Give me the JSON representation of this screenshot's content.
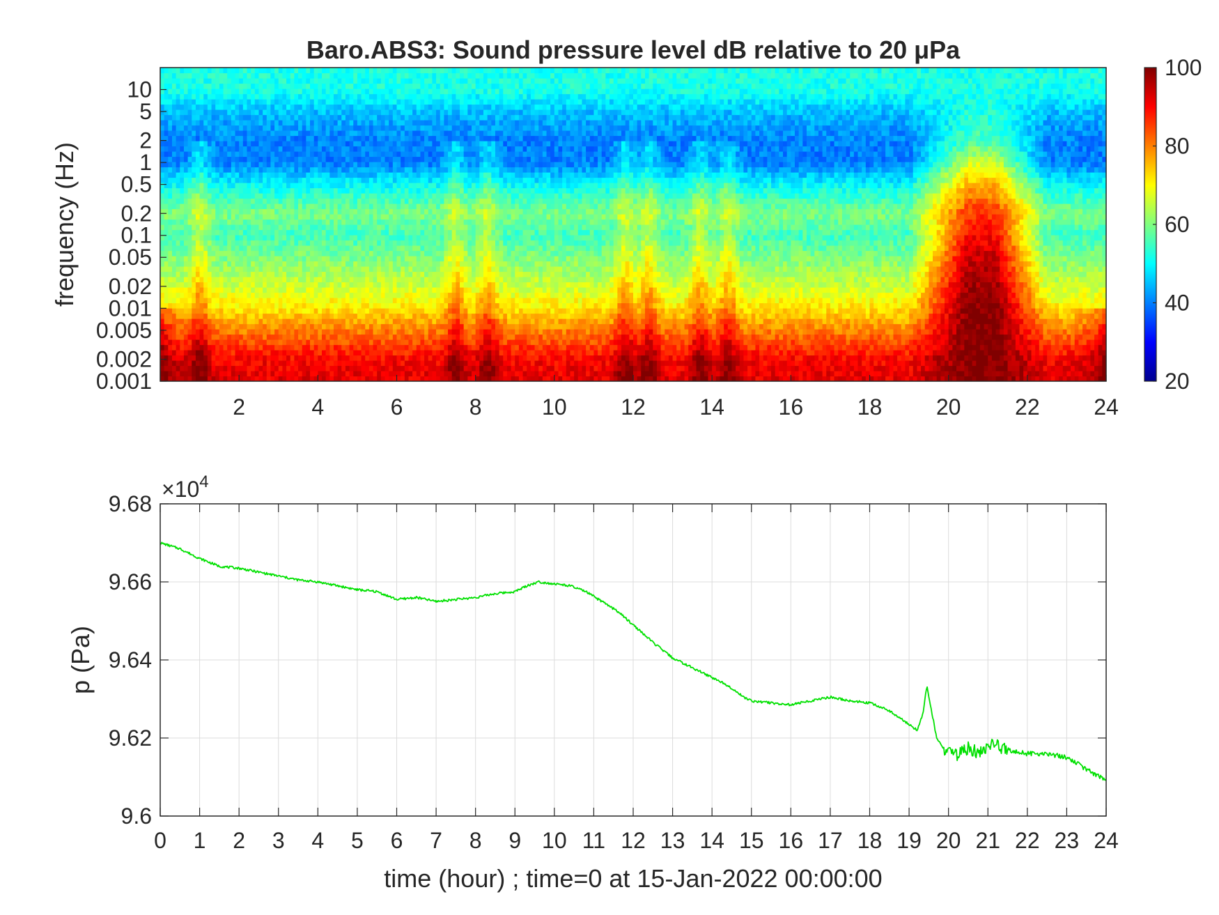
{
  "chart_data": [
    {
      "type": "heatmap",
      "title": "Baro.ABS3: Sound pressure level dB relative to 20 μPa",
      "xlabel": "",
      "ylabel": "frequency (Hz)",
      "xlim": [
        0,
        24
      ],
      "ylim": [
        0.001,
        20
      ],
      "yscale": "log",
      "colormap": "jet",
      "x_ticks": [
        2,
        4,
        6,
        8,
        10,
        12,
        14,
        16,
        18,
        20,
        22,
        24
      ],
      "x_tick_labels": [
        "2",
        "4",
        "6",
        "8",
        "10",
        "12",
        "14",
        "16",
        "18",
        "20",
        "22",
        "24"
      ],
      "y_ticks": [
        0.001,
        0.002,
        0.005,
        0.01,
        0.02,
        0.05,
        0.1,
        0.2,
        0.5,
        1,
        2,
        5,
        10
      ],
      "y_tick_labels": [
        "0.001",
        "0.002",
        "0.005",
        "0.01",
        "0.02",
        "0.05",
        "0.1",
        "0.2",
        "0.5",
        "1",
        "2",
        "5",
        "10"
      ],
      "colorbar": {
        "limits": [
          20,
          100
        ],
        "ticks": [
          20,
          40,
          60,
          80,
          100
        ],
        "tick_labels": [
          "20",
          "40",
          "60",
          "80",
          "100"
        ]
      },
      "approx_level_dB_profile": {
        "frequency_Hz": [
          0.001,
          0.002,
          0.005,
          0.01,
          0.02,
          0.05,
          0.1,
          0.2,
          0.5,
          1,
          2,
          5,
          10,
          20
        ],
        "quiet_hours_dB": [
          92,
          90,
          80,
          72,
          66,
          60,
          55,
          60,
          50,
          40,
          40,
          45,
          52,
          52
        ],
        "hour_20_to_21_dB": [
          100,
          100,
          100,
          100,
          98,
          94,
          90,
          86,
          76,
          66,
          56,
          52,
          52,
          52
        ]
      },
      "events_hours": [
        1.0,
        7.5,
        8.3,
        11.8,
        12.4,
        13.7,
        14.4
      ]
    },
    {
      "type": "line",
      "title": "",
      "xlabel": "time (hour) ; time=0 at 15-Jan-2022 00:00:00",
      "ylabel": "p (Pa)",
      "exponent_label": "×10",
      "exponent_power": "4",
      "xlim": [
        0,
        24
      ],
      "ylim": [
        96000,
        96800
      ],
      "grid": true,
      "line_color": "#00e000",
      "x_ticks": [
        0,
        1,
        2,
        3,
        4,
        5,
        6,
        7,
        8,
        9,
        10,
        11,
        12,
        13,
        14,
        15,
        16,
        17,
        18,
        19,
        20,
        21,
        22,
        23,
        24
      ],
      "x_tick_labels": [
        "0",
        "1",
        "2",
        "3",
        "4",
        "5",
        "6",
        "7",
        "8",
        "9",
        "10",
        "11",
        "12",
        "13",
        "14",
        "15",
        "16",
        "17",
        "18",
        "19",
        "20",
        "21",
        "22",
        "23",
        "24"
      ],
      "y_ticks": [
        96000,
        96200,
        96400,
        96600,
        96800
      ],
      "y_tick_labels": [
        "9.6",
        "9.62",
        "9.64",
        "9.66",
        "9.68"
      ],
      "series": [
        {
          "x": [
            0,
            0.5,
            1,
            1.5,
            2,
            2.5,
            3,
            3.5,
            4,
            4.5,
            5,
            5.5,
            6,
            6.5,
            7,
            7.5,
            8,
            8.5,
            9,
            9.3,
            9.6,
            10,
            10.4,
            10.8,
            11.2,
            11.6,
            12,
            12.5,
            13,
            13.5,
            14,
            14.4,
            14.8,
            15,
            15.5,
            16,
            16.5,
            17,
            17.5,
            18,
            18.5,
            19,
            19.2,
            19.35,
            19.45,
            19.55,
            19.7,
            19.9,
            20.2,
            20.5,
            20.8,
            21.1,
            21.5,
            22,
            22.5,
            23,
            23.5,
            24
          ],
          "y": [
            96700,
            96685,
            96660,
            96640,
            96635,
            96625,
            96615,
            96605,
            96600,
            96590,
            96580,
            96575,
            96555,
            96560,
            96550,
            96555,
            96560,
            96570,
            96575,
            96590,
            96600,
            96595,
            96590,
            96575,
            96550,
            96525,
            96490,
            96445,
            96405,
            96380,
            96355,
            96335,
            96305,
            96295,
            96290,
            96285,
            96295,
            96305,
            96295,
            96290,
            96270,
            96235,
            96220,
            96260,
            96335,
            96280,
            96200,
            96170,
            96155,
            96175,
            96160,
            96185,
            96170,
            96160,
            96160,
            96150,
            96120,
            96090
          ]
        }
      ]
    }
  ]
}
